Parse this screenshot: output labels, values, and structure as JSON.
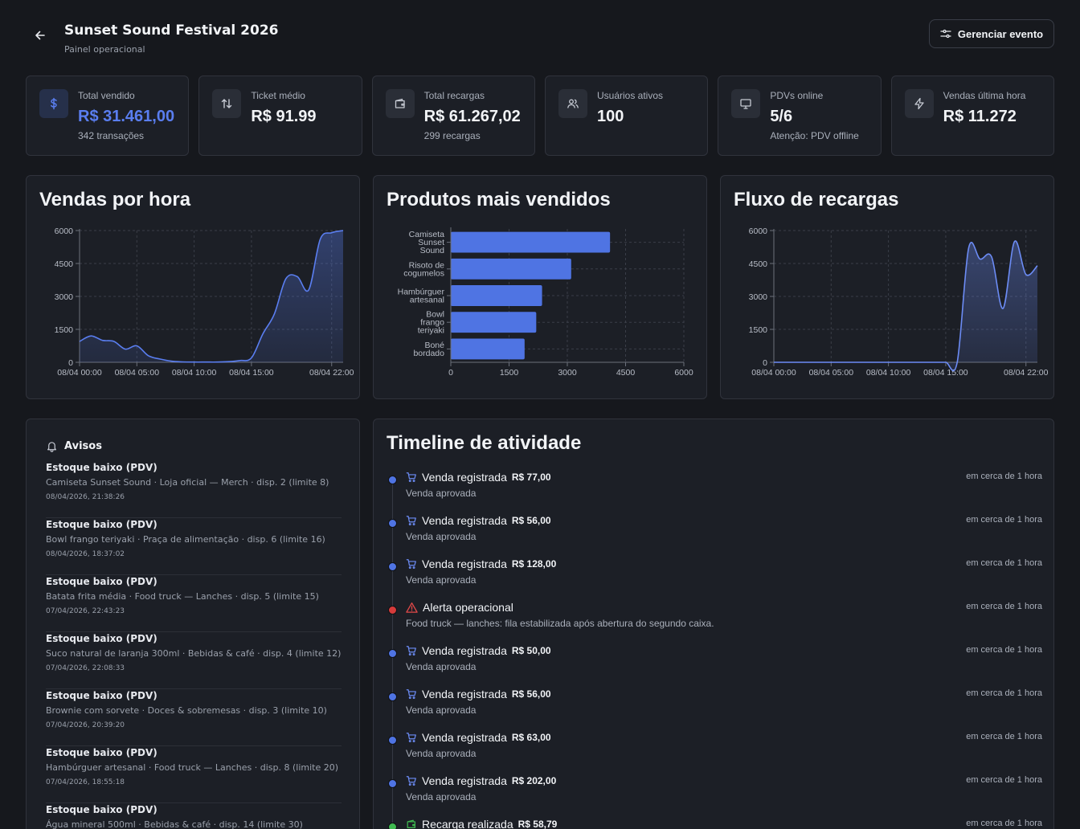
{
  "header": {
    "title": "Sunset Sound Festival 2026",
    "subtitle": "Painel operacional",
    "manage_label": "Gerenciar evento"
  },
  "stats": [
    {
      "icon": "dollar-icon",
      "label": "Total vendido",
      "value": "R$ 31.461,00",
      "sub": "342 transações",
      "accent": "#5a7ef0"
    },
    {
      "icon": "arrows-up-down-icon",
      "label": "Ticket médio",
      "value": "R$ 91.99",
      "sub": ""
    },
    {
      "icon": "wallet-icon",
      "label": "Total recargas",
      "value": "R$ 61.267,02",
      "sub": "299 recargas"
    },
    {
      "icon": "users-icon",
      "label": "Usuários ativos",
      "value": "100",
      "sub": ""
    },
    {
      "icon": "monitor-icon",
      "label": "PDVs online",
      "value": "5/6",
      "sub": "Atenção: PDV offline"
    },
    {
      "icon": "bolt-icon",
      "label": "Vendas última hora",
      "value": "R$ 11.272",
      "sub": ""
    }
  ],
  "charts": {
    "sales_title": "Vendas por hora",
    "products_title": "Produtos mais vendidos",
    "recharges_title": "Fluxo de recargas"
  },
  "chart_data": [
    {
      "type": "area",
      "title": "Vendas por hora",
      "x_ticks": [
        "08/04 00:00",
        "08/04 05:00",
        "08/04 10:00",
        "08/04 15:00",
        "08/04 22:00"
      ],
      "y_ticks": [
        "0",
        "1500",
        "3000",
        "4500",
        "6000"
      ],
      "ylim": [
        0,
        6000
      ],
      "x_hours": [
        0,
        1,
        2,
        3,
        4,
        5,
        6,
        7,
        8,
        9,
        10,
        11,
        12,
        13,
        14,
        15,
        16,
        17,
        18,
        19,
        20,
        21,
        22,
        23
      ],
      "values": [
        950,
        1200,
        1000,
        950,
        600,
        750,
        300,
        150,
        50,
        20,
        10,
        10,
        10,
        30,
        80,
        200,
        1300,
        2200,
        3800,
        3900,
        3300,
        5600,
        5900,
        6000
      ],
      "color": "#5a7ef0",
      "grid": true
    },
    {
      "type": "bar",
      "orientation": "horizontal",
      "title": "Produtos mais vendidos",
      "categories": [
        [
          "Camiseta",
          "Sunset",
          "Sound"
        ],
        [
          "Risoto de",
          "cogumelos"
        ],
        [
          "Hambúrguer",
          "artesanal"
        ],
        [
          "Bowl",
          "frango",
          "teriyaki"
        ],
        [
          "Boné",
          "bordado"
        ]
      ],
      "values": [
        4100,
        3100,
        2350,
        2200,
        1900
      ],
      "x_ticks": [
        "0",
        "1500",
        "3000",
        "4500",
        "6000"
      ],
      "xlim": [
        0,
        6000
      ],
      "color": "#4f74e3",
      "grid": true
    },
    {
      "type": "area",
      "title": "Fluxo de recargas",
      "x_ticks": [
        "08/04 00:00",
        "08/04 05:00",
        "08/04 10:00",
        "08/04 15:00",
        "08/04 22:00"
      ],
      "y_ticks": [
        "0",
        "1500",
        "3000",
        "4500",
        "6000"
      ],
      "ylim": [
        0,
        6000
      ],
      "x_hours": [
        0,
        1,
        2,
        3,
        4,
        5,
        6,
        7,
        8,
        9,
        10,
        11,
        12,
        13,
        14,
        15,
        16,
        17,
        18,
        19,
        20,
        21,
        22,
        23
      ],
      "values": [
        0,
        0,
        0,
        0,
        0,
        0,
        0,
        0,
        0,
        0,
        0,
        0,
        0,
        0,
        0,
        0,
        0,
        5200,
        4700,
        4800,
        2450,
        5500,
        4000,
        4400
      ],
      "color": "#6c8cf5",
      "grid": true
    }
  ],
  "alerts": {
    "title": "Avisos",
    "items": [
      {
        "title": "Estoque baixo (PDV)",
        "desc": "Camiseta Sunset Sound · Loja oficial — Merch · disp. 2 (limite 8)",
        "time": "08/04/2026, 21:38:26"
      },
      {
        "title": "Estoque baixo (PDV)",
        "desc": "Bowl frango teriyaki · Praça de alimentação · disp. 6 (limite 16)",
        "time": "08/04/2026, 18:37:02"
      },
      {
        "title": "Estoque baixo (PDV)",
        "desc": "Batata frita média · Food truck — Lanches · disp. 5 (limite 15)",
        "time": "07/04/2026, 22:43:23"
      },
      {
        "title": "Estoque baixo (PDV)",
        "desc": "Suco natural de laranja 300ml · Bebidas & café · disp. 4 (limite 12)",
        "time": "07/04/2026, 22:08:33"
      },
      {
        "title": "Estoque baixo (PDV)",
        "desc": "Brownie com sorvete · Doces & sobremesas · disp. 3 (limite 10)",
        "time": "07/04/2026, 20:39:20"
      },
      {
        "title": "Estoque baixo (PDV)",
        "desc": "Hambúrguer artesanal · Food truck — Lanches · disp. 8 (limite 20)",
        "time": "07/04/2026, 18:55:18"
      },
      {
        "title": "Estoque baixo (PDV)",
        "desc": "Água mineral 500ml · Bebidas & café · disp. 14 (limite 30)",
        "time": ""
      }
    ]
  },
  "timeline": {
    "title": "Timeline de atividade",
    "items": [
      {
        "kind": "sale",
        "icon": "cart-icon",
        "title": "Venda registrada",
        "amount": "R$ 77,00",
        "desc": "Venda aprovada",
        "time": "em cerca de 1 hora",
        "dot_color": "#4f74e3"
      },
      {
        "kind": "sale",
        "icon": "cart-icon",
        "title": "Venda registrada",
        "amount": "R$ 56,00",
        "desc": "Venda aprovada",
        "time": "em cerca de 1 hora",
        "dot_color": "#4f74e3"
      },
      {
        "kind": "sale",
        "icon": "cart-icon",
        "title": "Venda registrada",
        "amount": "R$ 128,00",
        "desc": "Venda aprovada",
        "time": "em cerca de 1 hora",
        "dot_color": "#4f74e3"
      },
      {
        "kind": "alert",
        "icon": "warning-icon",
        "title": "Alerta operacional",
        "amount": "",
        "desc": "Food truck — lanches: fila estabilizada após abertura do segundo caixa.",
        "time": "em cerca de 1 hora",
        "dot_color": "#d63b3b"
      },
      {
        "kind": "sale",
        "icon": "cart-icon",
        "title": "Venda registrada",
        "amount": "R$ 50,00",
        "desc": "Venda aprovada",
        "time": "em cerca de 1 hora",
        "dot_color": "#4f74e3"
      },
      {
        "kind": "sale",
        "icon": "cart-icon",
        "title": "Venda registrada",
        "amount": "R$ 56,00",
        "desc": "Venda aprovada",
        "time": "em cerca de 1 hora",
        "dot_color": "#4f74e3"
      },
      {
        "kind": "sale",
        "icon": "cart-icon",
        "title": "Venda registrada",
        "amount": "R$ 63,00",
        "desc": "Venda aprovada",
        "time": "em cerca de 1 hora",
        "dot_color": "#4f74e3"
      },
      {
        "kind": "sale",
        "icon": "cart-icon",
        "title": "Venda registrada",
        "amount": "R$ 202,00",
        "desc": "Venda aprovada",
        "time": "em cerca de 1 hora",
        "dot_color": "#4f74e3"
      },
      {
        "kind": "recharge",
        "icon": "wallet-icon",
        "title": "Recarga realizada",
        "amount": "R$ 58,79",
        "desc": "",
        "time": "em cerca de 1 hora",
        "dot_color": "#3fb950"
      }
    ]
  }
}
